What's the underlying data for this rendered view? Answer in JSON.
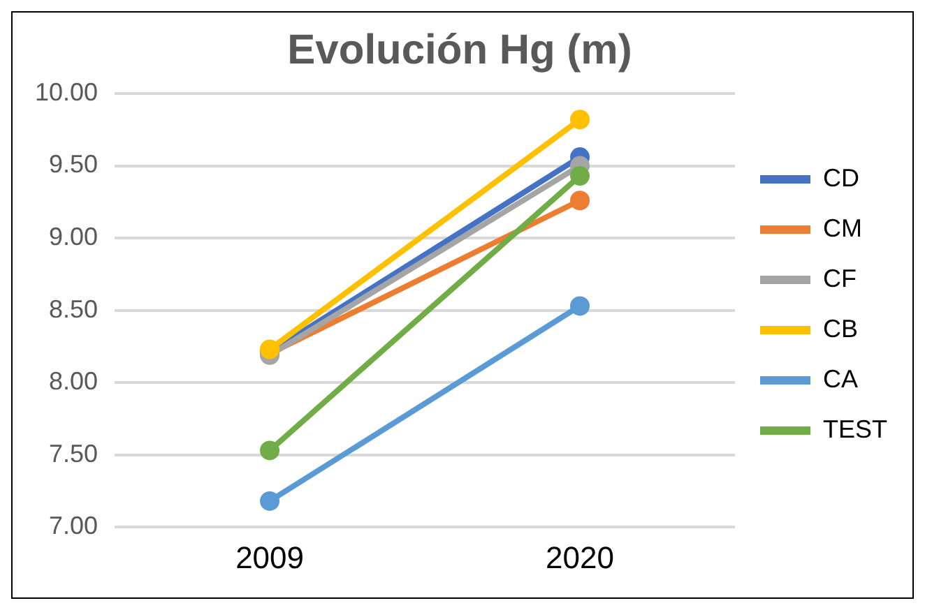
{
  "chart_data": {
    "type": "line",
    "title": "Evolución Hg (m)",
    "categories": [
      "2009",
      "2020"
    ],
    "series": [
      {
        "name": "CD",
        "color": "#4472c4",
        "values": [
          8.21,
          9.56
        ]
      },
      {
        "name": "CM",
        "color": "#ed7d31",
        "values": [
          8.2,
          9.26
        ]
      },
      {
        "name": "CF",
        "color": "#a5a5a5",
        "values": [
          8.19,
          9.5
        ]
      },
      {
        "name": "CB",
        "color": "#ffc000",
        "values": [
          8.23,
          9.82
        ]
      },
      {
        "name": "CA",
        "color": "#5b9bd5",
        "values": [
          7.18,
          8.53
        ]
      },
      {
        "name": "TEST",
        "color": "#70ad47",
        "values": [
          7.53,
          9.43
        ]
      }
    ],
    "ylim": [
      7,
      10
    ],
    "yticks": [
      {
        "value": 7,
        "label": "7.00"
      },
      {
        "value": 7.5,
        "label": "7.50"
      },
      {
        "value": 8,
        "label": "8.00"
      },
      {
        "value": 8.5,
        "label": "8.50"
      },
      {
        "value": 9,
        "label": "9.00"
      },
      {
        "value": 9.5,
        "label": "9.50"
      },
      {
        "value": 10,
        "label": "10.00"
      }
    ],
    "grid": "y",
    "legend": "right",
    "marker": "circle",
    "line_style": "solid"
  }
}
